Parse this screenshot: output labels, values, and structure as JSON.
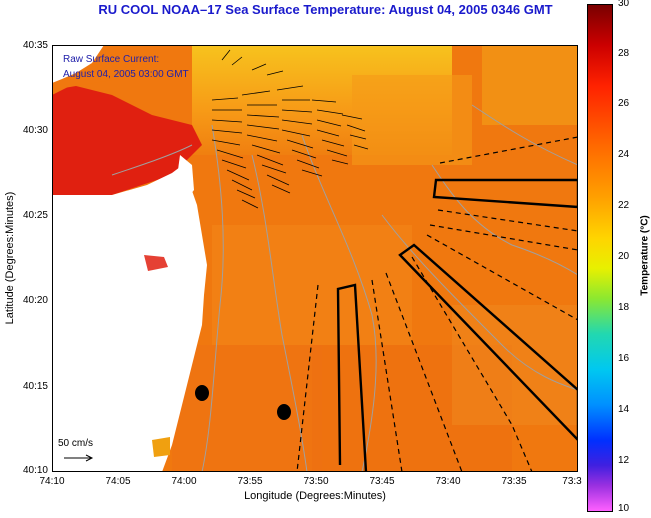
{
  "title": "RU COOL  NOAA–17  Sea Surface Temperature:  August 04, 2005 0346 GMT",
  "overlay": {
    "line1": "Raw Surface Current:",
    "line2": "August 04, 2005 03:00 GMT"
  },
  "scale_label": "50 cm/s",
  "axes": {
    "xlabel": "Longitude (Degrees:Minutes)",
    "ylabel": "Latitude (Degrees:Minutes)",
    "y_ticks": [
      "40:35",
      "40:30",
      "40:25",
      "40:20",
      "40:15",
      "40:10"
    ],
    "x_ticks": [
      "74:10",
      "74:05",
      "74:00",
      "73:55",
      "73:50",
      "73:45",
      "73:40",
      "73:35",
      "73:3"
    ]
  },
  "colorbar": {
    "title": "Temperature (°C)",
    "ticks": [
      "30",
      "28",
      "26",
      "24",
      "22",
      "20",
      "18",
      "16",
      "14",
      "12",
      "10"
    ],
    "range": [
      10,
      30
    ]
  },
  "colors": {
    "title": "#1a1acc",
    "ocean": "#f0780f",
    "warm": "#e02010",
    "cool": "#f8c020",
    "land": "#ffffff",
    "contour": "#a0a0a0"
  }
}
